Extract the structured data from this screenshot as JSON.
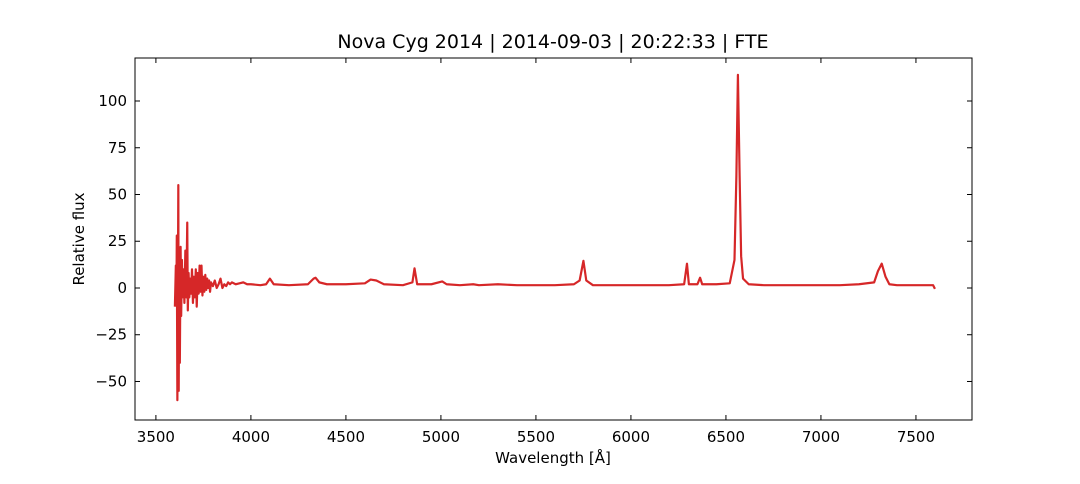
{
  "chart_data": {
    "type": "line",
    "title": "Nova Cyg 2014 | 2014-09-03 | 20:22:33 | FTE",
    "x_label": "Wavelength [Å]",
    "y_label": "Relative flux",
    "color": "#d62728",
    "x": [
      3600,
      3605,
      3608,
      3610,
      3613,
      3615,
      3618,
      3620,
      3623,
      3626,
      3630,
      3633,
      3637,
      3640,
      3645,
      3650,
      3655,
      3660,
      3665,
      3668,
      3672,
      3676,
      3680,
      3685,
      3690,
      3695,
      3700,
      3705,
      3710,
      3715,
      3720,
      3725,
      3730,
      3735,
      3740,
      3745,
      3750,
      3755,
      3760,
      3765,
      3770,
      3775,
      3780,
      3785,
      3790,
      3800,
      3810,
      3820,
      3830,
      3840,
      3850,
      3860,
      3870,
      3880,
      3890,
      3900,
      3920,
      3940,
      3960,
      3980,
      4000,
      4050,
      4080,
      4100,
      4120,
      4200,
      4300,
      4330,
      4340,
      4360,
      4400,
      4500,
      4600,
      4630,
      4660,
      4700,
      4800,
      4850,
      4861,
      4875,
      4950,
      5007,
      5030,
      5100,
      5170,
      5200,
      5300,
      5400,
      5500,
      5600,
      5700,
      5730,
      5750,
      5765,
      5800,
      5900,
      6000,
      6100,
      6200,
      6280,
      6295,
      6305,
      6350,
      6364,
      6375,
      6450,
      6520,
      6545,
      6555,
      6563,
      6572,
      6580,
      6590,
      6620,
      6700,
      6800,
      6900,
      7000,
      7100,
      7200,
      7280,
      7300,
      7320,
      7340,
      7360,
      7400,
      7500,
      7590,
      7600
    ],
    "values": [
      -10,
      12,
      -8,
      28,
      -60,
      -20,
      55,
      -55,
      20,
      -40,
      22,
      -15,
      15,
      -5,
      10,
      -8,
      20,
      -5,
      35,
      -12,
      8,
      -5,
      5,
      -3,
      10,
      -8,
      6,
      -5,
      10,
      -10,
      8,
      -3,
      12,
      -2,
      12,
      -4,
      6,
      -2,
      7,
      -1,
      5,
      0,
      4,
      -2,
      3,
      1,
      4,
      0,
      2,
      5,
      0,
      2,
      1,
      3,
      2,
      3,
      2,
      2.5,
      3,
      2,
      2,
      1.5,
      2,
      5,
      2,
      1.5,
      2,
      5,
      5.5,
      3,
      2,
      2,
      2.5,
      4.5,
      4,
      2,
      1.5,
      3,
      10.5,
      2,
      2,
      3.5,
      2,
      1.5,
      2,
      1.5,
      2,
      1.5,
      1.5,
      1.5,
      2,
      4,
      14.5,
      4,
      1.5,
      1.5,
      1.5,
      1.5,
      1.5,
      2,
      13,
      2,
      2,
      5.5,
      2,
      2,
      2.5,
      15,
      60,
      114,
      60,
      17,
      5,
      2,
      1.5,
      1.5,
      1.5,
      1.5,
      1.5,
      2,
      3,
      9,
      13,
      6,
      2,
      1.5,
      1.5,
      1.5,
      -0.5
    ],
    "xlim": [
      3390,
      7795
    ],
    "ylim": [
      -70.6,
      123
    ],
    "xticks": [
      3500,
      4000,
      4500,
      5000,
      5500,
      6000,
      6500,
      7000,
      7500
    ],
    "yticks": [
      {
        "value": -50,
        "label": "−50"
      },
      {
        "value": -25,
        "label": "−25"
      },
      0,
      25,
      50,
      75,
      100
    ],
    "grid": false
  }
}
